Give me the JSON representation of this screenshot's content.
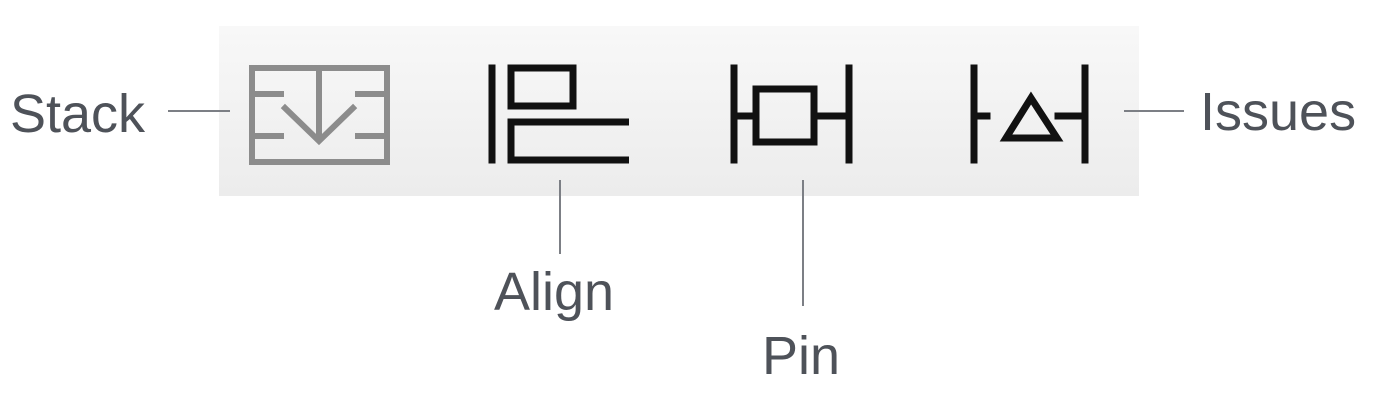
{
  "toolbar": {
    "tools": [
      {
        "id": "stack",
        "icon": "stack-icon",
        "label": "Stack",
        "enabled": false
      },
      {
        "id": "align",
        "icon": "align-icon",
        "label": "Align",
        "enabled": true
      },
      {
        "id": "pin",
        "icon": "pin-icon",
        "label": "Pin",
        "enabled": true
      },
      {
        "id": "issues",
        "icon": "issues-icon",
        "label": "Issues",
        "enabled": true
      }
    ]
  },
  "colors": {
    "toolbar_background": "#f1f1f1",
    "active_icon": "#111111",
    "disabled_icon": "#8c8c8c",
    "callout_text": "#4e5259",
    "leader_line": "#7c7f85"
  }
}
